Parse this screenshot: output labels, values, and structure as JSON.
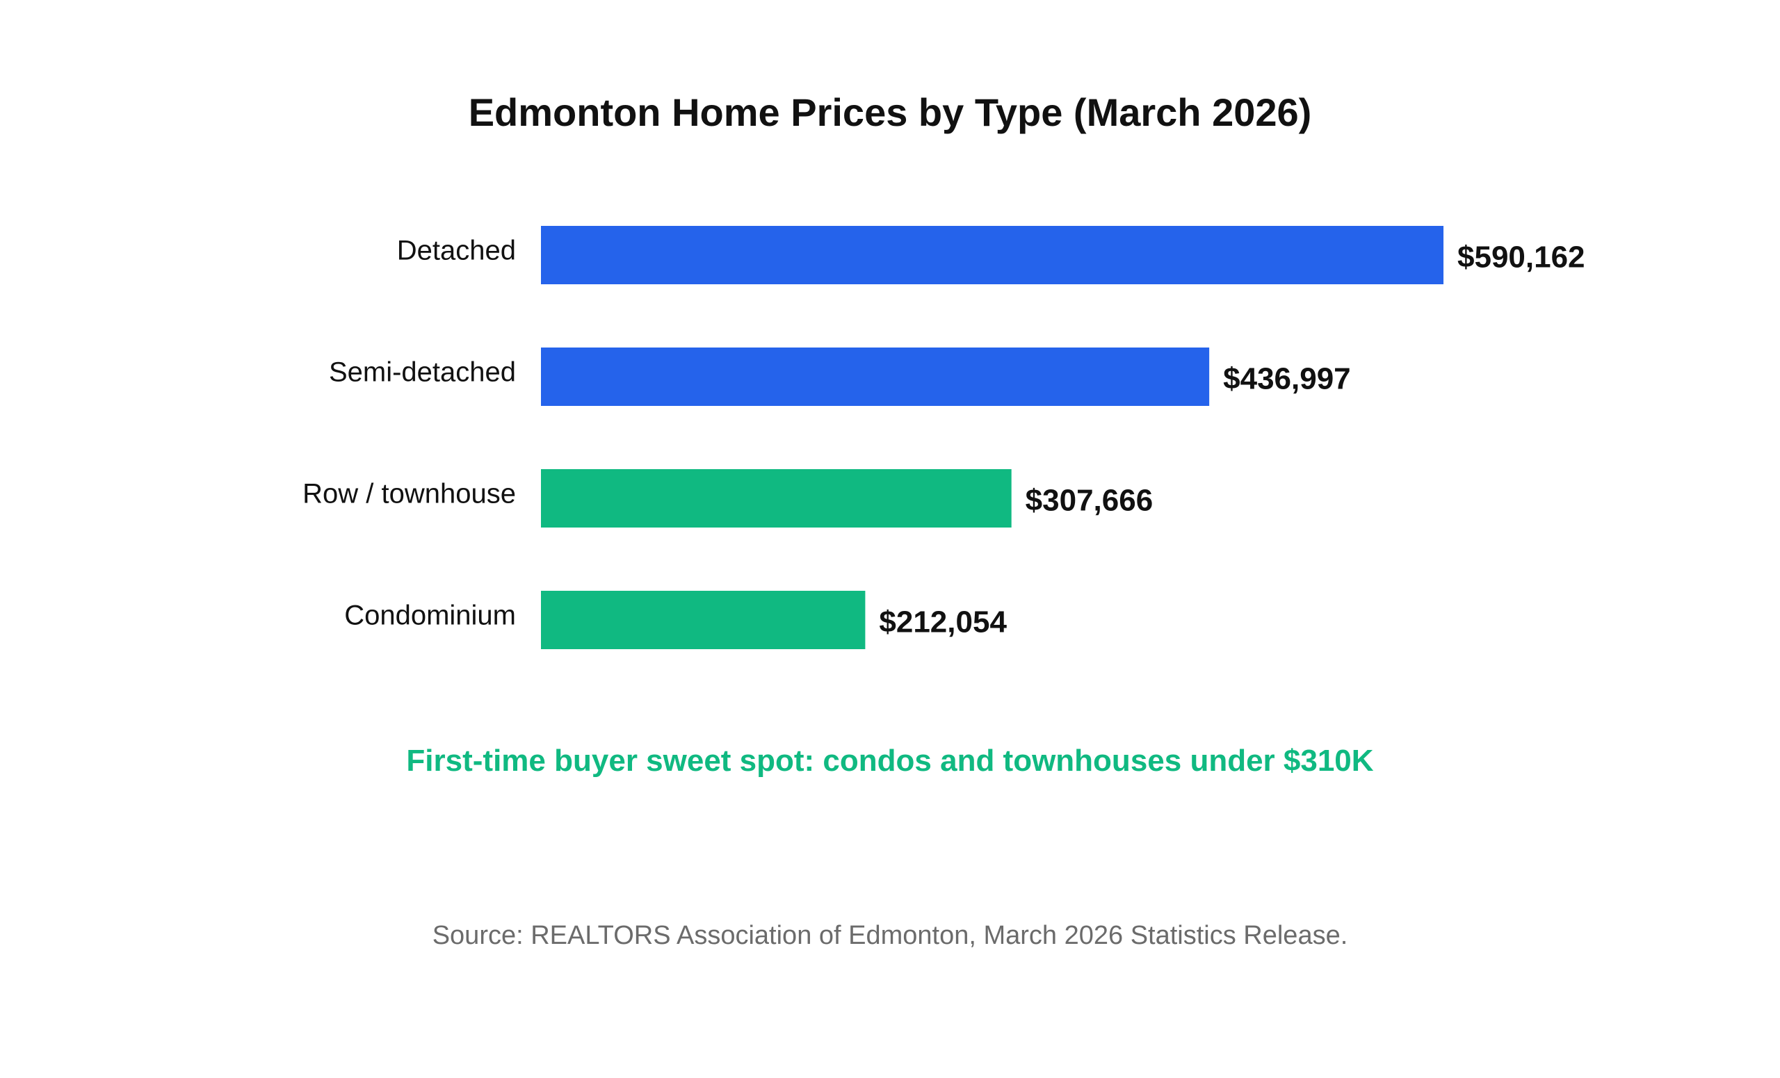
{
  "chart_data": {
    "type": "bar",
    "orientation": "horizontal",
    "title": "Edmonton Home Prices by Type (March 2026)",
    "categories": [
      "Detached",
      "Semi-detached",
      "Row / townhouse",
      "Condominium"
    ],
    "values": [
      590162,
      436997,
      307666,
      212054
    ],
    "value_labels": [
      "$590,162",
      "$436,997",
      "$307,666",
      "$212,054"
    ],
    "bar_colors": [
      "#2563eb",
      "#2563eb",
      "#10b981",
      "#10b981"
    ],
    "xlim": [
      0,
      590162
    ],
    "grid": false,
    "legend": "none",
    "xlabel": "",
    "ylabel": ""
  },
  "callout": "First-time buyer sweet spot: condos and townhouses under $310K",
  "callout_color": "#10b981",
  "source": "Source: REALTORS Association of Edmonton, March 2026 Statistics Release."
}
